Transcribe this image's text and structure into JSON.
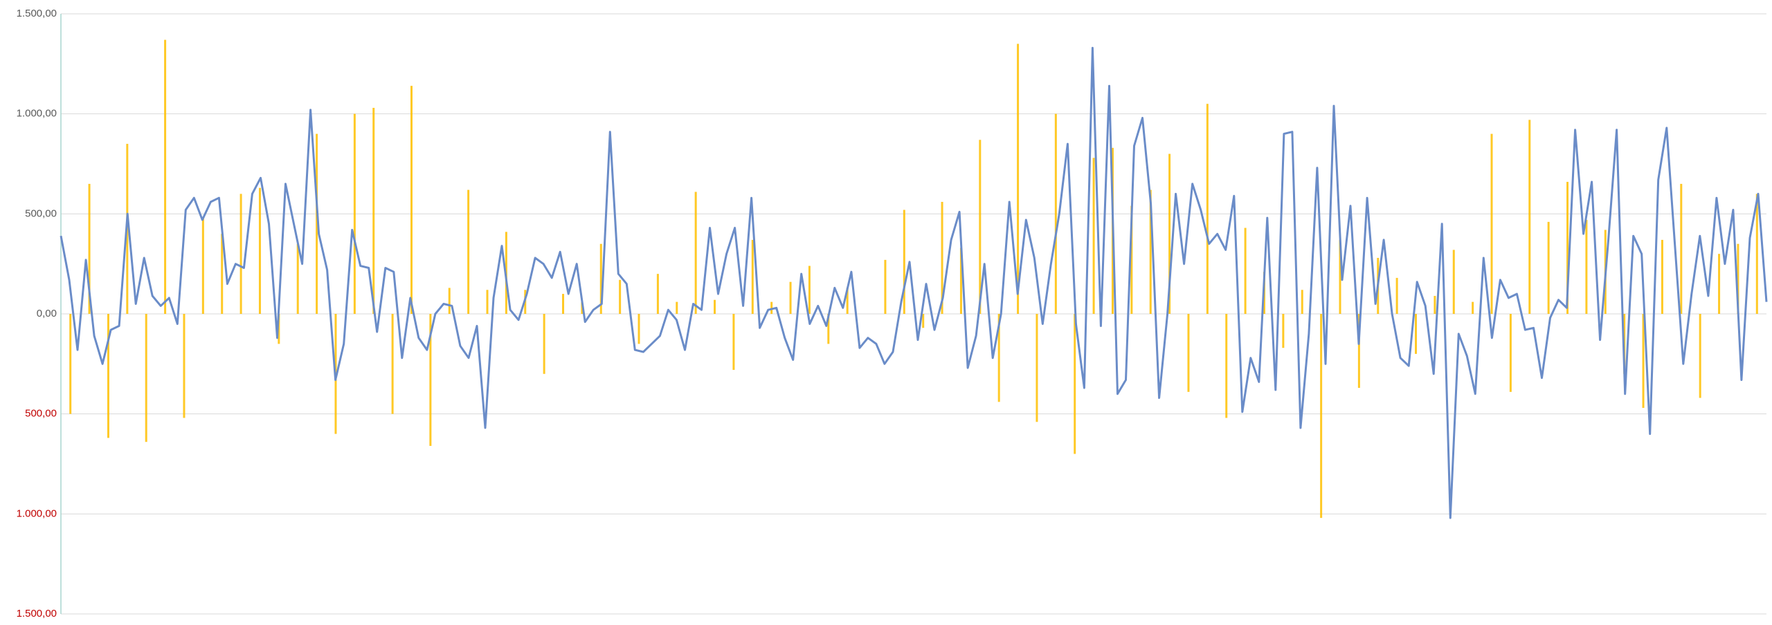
{
  "chart_data": {
    "type": "combo",
    "ylim": [
      -1500,
      1500
    ],
    "yticks": [
      {
        "value": -1500,
        "label": "1.500,00"
      },
      {
        "value": -1000,
        "label": "1.000,00"
      },
      {
        "value": -500,
        "label": "500,00"
      },
      {
        "value": 0,
        "label": "0,00"
      },
      {
        "value": 500,
        "label": "500,00"
      },
      {
        "value": 1000,
        "label": "1.000,00"
      },
      {
        "value": 1500,
        "label": "1.500,00"
      }
    ],
    "grid": true,
    "label_color": "#595959",
    "negative_label_color": "#c00000",
    "series": [
      {
        "kind": "bar",
        "color": "#ffc000",
        "values": [
          -500,
          650,
          -620,
          850,
          -640,
          1370,
          -520,
          480,
          400,
          600,
          630,
          -150,
          350,
          900,
          -600,
          1000,
          1030,
          -500,
          1140,
          -660,
          130,
          620,
          120,
          410,
          120,
          -300,
          100,
          60,
          350,
          170,
          -150,
          200,
          60,
          610,
          70,
          -280,
          370,
          60,
          160,
          240,
          -150,
          130,
          0,
          270,
          520,
          -70,
          560,
          330,
          870,
          -440,
          1350,
          -540,
          1000,
          -700,
          780,
          830,
          540,
          620,
          800,
          -390,
          1050,
          -520,
          430,
          210,
          -170,
          120,
          -1020,
          370,
          -370,
          280,
          180,
          -200,
          90,
          320,
          60,
          900,
          -390,
          970,
          460,
          660,
          470,
          420,
          -300,
          -470,
          370,
          650,
          -420,
          300,
          350,
          600
        ]
      },
      {
        "kind": "line",
        "color": "#6a8cc8",
        "values": [
          390,
          170,
          -180,
          270,
          -110,
          -250,
          -80,
          -60,
          500,
          50,
          280,
          90,
          40,
          80,
          -50,
          520,
          580,
          470,
          560,
          580,
          150,
          250,
          230,
          600,
          680,
          450,
          -120,
          650,
          450,
          250,
          1020,
          400,
          220,
          -330,
          -150,
          420,
          240,
          230,
          -90,
          230,
          210,
          -220,
          80,
          -120,
          -180,
          0,
          50,
          40,
          -160,
          -220,
          -60,
          -570,
          80,
          340,
          20,
          -30,
          100,
          280,
          250,
          180,
          310,
          100,
          250,
          -40,
          20,
          50,
          910,
          200,
          150,
          -180,
          -190,
          -150,
          -110,
          20,
          -30,
          -180,
          50,
          20,
          430,
          100,
          300,
          430,
          40,
          580,
          -70,
          20,
          30,
          -120,
          -230,
          200,
          -50,
          40,
          -60,
          130,
          30,
          210,
          -170,
          -120,
          -150,
          -250,
          -190,
          60,
          260,
          -130,
          150,
          -80,
          80,
          370,
          510,
          -270,
          -110,
          250,
          -220,
          0,
          560,
          100,
          470,
          280,
          -50,
          250,
          500,
          850,
          -50,
          -370,
          1330,
          -60,
          1140,
          -400,
          -330,
          840,
          980,
          550,
          -420,
          0,
          600,
          250,
          650,
          520,
          350,
          400,
          320,
          590,
          -490,
          -220,
          -340,
          480,
          -380,
          900,
          910,
          -570,
          -100,
          730,
          -250,
          1040,
          170,
          540,
          -150,
          580,
          50,
          370,
          0,
          -220,
          -260,
          160,
          40,
          -300,
          450,
          -1020,
          -100,
          -210,
          -400,
          280,
          -120,
          170,
          80,
          100,
          -80,
          -70,
          -320,
          -20,
          70,
          30,
          920,
          400,
          660,
          -130,
          370,
          920,
          -400,
          390,
          300,
          -600,
          670,
          930,
          340,
          -250,
          100,
          390,
          90,
          580,
          250,
          520,
          -330,
          380,
          600,
          60
        ]
      }
    ]
  }
}
